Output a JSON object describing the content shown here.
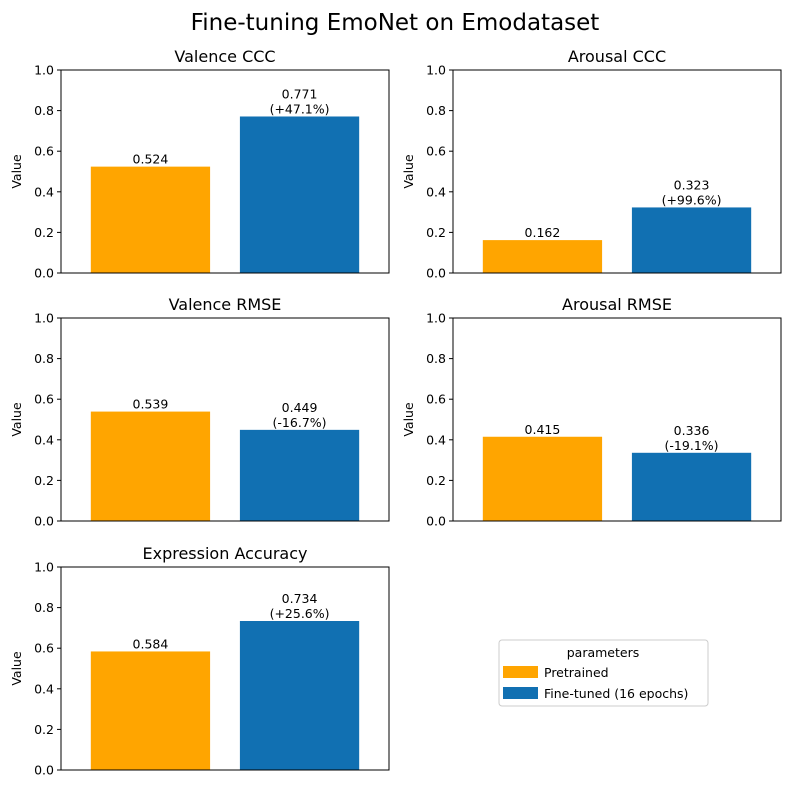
{
  "title": "Fine-tuning EmoNet on Emodataset",
  "legend": {
    "title": "parameters",
    "placement": "lower-right",
    "entries": [
      {
        "label": "Pretrained",
        "color": "#FFA500"
      },
      {
        "label": "Fine-tuned (16 epochs)",
        "color": "#1170B2"
      }
    ]
  },
  "chart_data": [
    {
      "type": "bar",
      "title": "Valence CCC",
      "ylabel": "Value",
      "ylim": [
        0,
        1.0
      ],
      "yticks": [
        "0.0",
        "0.2",
        "0.4",
        "0.6",
        "0.8",
        "1.0"
      ],
      "categories": [
        "Pretrained",
        "Fine-tuned (16 epochs)"
      ],
      "values": [
        0.524,
        0.771
      ],
      "labels": [
        [
          "0.524"
        ],
        [
          "0.771",
          "(+47.1%)"
        ]
      ],
      "colors": [
        "#FFA500",
        "#1170B2"
      ]
    },
    {
      "type": "bar",
      "title": "Arousal CCC",
      "ylabel": "Value",
      "ylim": [
        0,
        1.0
      ],
      "yticks": [
        "0.0",
        "0.2",
        "0.4",
        "0.6",
        "0.8",
        "1.0"
      ],
      "categories": [
        "Pretrained",
        "Fine-tuned (16 epochs)"
      ],
      "values": [
        0.162,
        0.323
      ],
      "labels": [
        [
          "0.162"
        ],
        [
          "0.323",
          "(+99.6%)"
        ]
      ],
      "colors": [
        "#FFA500",
        "#1170B2"
      ]
    },
    {
      "type": "bar",
      "title": "Valence RMSE",
      "ylabel": "Value",
      "ylim": [
        0,
        1.0
      ],
      "yticks": [
        "0.0",
        "0.2",
        "0.4",
        "0.6",
        "0.8",
        "1.0"
      ],
      "categories": [
        "Pretrained",
        "Fine-tuned (16 epochs)"
      ],
      "values": [
        0.539,
        0.449
      ],
      "labels": [
        [
          "0.539"
        ],
        [
          "0.449",
          "(-16.7%)"
        ]
      ],
      "colors": [
        "#FFA500",
        "#1170B2"
      ]
    },
    {
      "type": "bar",
      "title": "Arousal RMSE",
      "ylabel": "Value",
      "ylim": [
        0,
        1.0
      ],
      "yticks": [
        "0.0",
        "0.2",
        "0.4",
        "0.6",
        "0.8",
        "1.0"
      ],
      "categories": [
        "Pretrained",
        "Fine-tuned (16 epochs)"
      ],
      "values": [
        0.415,
        0.336
      ],
      "labels": [
        [
          "0.415"
        ],
        [
          "0.336",
          "(-19.1%)"
        ]
      ],
      "colors": [
        "#FFA500",
        "#1170B2"
      ]
    },
    {
      "type": "bar",
      "title": "Expression Accuracy",
      "ylabel": "Value",
      "ylim": [
        0,
        1.0
      ],
      "yticks": [
        "0.0",
        "0.2",
        "0.4",
        "0.6",
        "0.8",
        "1.0"
      ],
      "categories": [
        "Pretrained",
        "Fine-tuned (16 epochs)"
      ],
      "values": [
        0.584,
        0.734
      ],
      "labels": [
        [
          "0.584"
        ],
        [
          "0.734",
          "(+25.6%)"
        ]
      ],
      "colors": [
        "#FFA500",
        "#1170B2"
      ]
    }
  ]
}
